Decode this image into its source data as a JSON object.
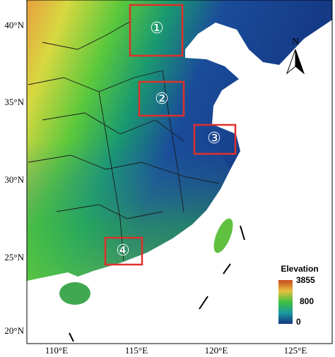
{
  "map": {
    "lat_labels": [
      "40°N",
      "35°N",
      "30°N",
      "25°N",
      "20°N"
    ],
    "lon_labels": [
      "110°E",
      "115°E",
      "120°E",
      "125°E"
    ],
    "regions": [
      {
        "label": "①"
      },
      {
        "label": "②"
      },
      {
        "label": "③"
      },
      {
        "label": "④"
      }
    ],
    "north": "N",
    "legend": {
      "title": "Elevation",
      "max": 3855,
      "mid": 800,
      "min": 0
    }
  }
}
